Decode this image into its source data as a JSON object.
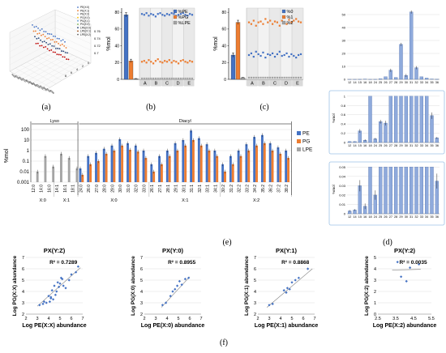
{
  "captions": {
    "a": "(a)",
    "b": "(b)",
    "c": "(c)",
    "d": "(d)",
    "e": "(e)",
    "f": "(f)"
  },
  "colors": {
    "blue": "#4472c4",
    "orange": "#ed7d31",
    "gray": "#a5a5a5",
    "bar_d": "#8faadc",
    "bar_d_edge": "#2f5597",
    "panel_bg": "#f2f2f2",
    "shade": "#d9d9d9",
    "grid": "#d0d0d0"
  },
  "chart_data": [
    {
      "id": "a",
      "type": "scatter",
      "legend": [
        "PE(X:0)",
        "PE(X:1)",
        "PE(X:2)",
        "PG(X:0)",
        "PG(X:1)",
        "PG(X:2)",
        "LPE(X:0)",
        "LPE(X:1)",
        "LPE(X:2)"
      ],
      "legend_colors": [
        "#4472c4",
        "#ed7d31",
        "#a5a5a5",
        "#ffc000",
        "#5b9bd5",
        "#70ad47",
        "#264478",
        "#9e480e",
        "#636363"
      ],
      "z_ticks": [
        "0.76",
        "0.74",
        "0.72",
        "0.7"
      ],
      "y_ticks": [
        "8",
        "6",
        "4",
        "2",
        "0"
      ],
      "series": [
        {
          "color": "#4472c4",
          "values": [
            0.76,
            0.757,
            0.761,
            0.759,
            0.756,
            0.762,
            0.758,
            0.76,
            0.757,
            0.759,
            0.761,
            0.758,
            0.76,
            0.757,
            0.759,
            0.756,
            0.761,
            0.758
          ]
        },
        {
          "color": "#ed7d31",
          "values": [
            0.742,
            0.745,
            0.74,
            0.744,
            0.741,
            0.746,
            0.743,
            0.74,
            0.744,
            0.742,
            0.745,
            0.741,
            0.744,
            0.742,
            0.74,
            0.745,
            0.743,
            0.741
          ]
        },
        {
          "color": "#264478",
          "values": [
            0.726,
            0.723,
            0.727,
            0.724,
            0.722,
            0.726,
            0.725,
            0.723,
            0.727,
            0.724,
            0.726,
            0.722,
            0.725,
            0.727,
            0.723,
            0.725,
            0.724,
            0.726
          ]
        },
        {
          "color": "#c00000",
          "values": [
            0.706,
            0.709,
            0.705,
            0.708,
            0.706,
            0.71,
            0.707,
            0.705,
            0.709,
            0.706,
            0.708,
            0.705,
            0.707,
            0.709,
            0.706,
            0.708,
            0.705,
            0.707
          ]
        }
      ]
    },
    {
      "id": "b",
      "type": "bar+scatter",
      "ylabel": "%mol",
      "yticks": [
        0,
        20,
        40,
        60,
        80
      ],
      "ylim": [
        0,
        85
      ],
      "xcats": [
        "A",
        "B",
        "C",
        "D",
        "E"
      ],
      "legend": [
        "%PE",
        "%PG",
        "%LPE"
      ],
      "colors": [
        "#4472c4",
        "#ed7d31",
        "#a5a5a5"
      ],
      "bars": [
        {
          "value": 77,
          "err": 2.5
        },
        {
          "value": 22,
          "err": 2
        },
        {
          "value": 0.8,
          "err": 0.2
        }
      ],
      "series": [
        {
          "name": "%PE",
          "values": [
            78,
            77,
            79,
            76,
            78,
            77,
            75,
            78,
            79,
            77,
            76,
            78,
            77,
            79,
            78,
            76,
            77,
            78,
            79,
            77,
            76,
            78,
            77
          ]
        },
        {
          "name": "%PG",
          "values": [
            21,
            22,
            20,
            23,
            21,
            19,
            22,
            24,
            21,
            20,
            22,
            21,
            23,
            20,
            22,
            21,
            19,
            22,
            23,
            21,
            20,
            22,
            21
          ]
        },
        {
          "name": "%LPE",
          "values": [
            1,
            1,
            1,
            1,
            1,
            1,
            1,
            1,
            1,
            1,
            1,
            1,
            1,
            1,
            1,
            1,
            1,
            1,
            1,
            1,
            1,
            1,
            1
          ]
        }
      ]
    },
    {
      "id": "c",
      "type": "bar+scatter",
      "ylabel": "%mol",
      "yticks": [
        0,
        20,
        40,
        60,
        80
      ],
      "ylim": [
        0,
        85
      ],
      "xcats": [
        "A",
        "B",
        "C",
        "D",
        "E"
      ],
      "legend": [
        "%0",
        "%1",
        "%2"
      ],
      "colors": [
        "#4472c4",
        "#ed7d31",
        "#a5a5a5"
      ],
      "bars": [
        {
          "value": 29,
          "err": 2.5
        },
        {
          "value": 68,
          "err": 2.5
        },
        {
          "value": 2,
          "err": 0.3
        }
      ],
      "series": [
        {
          "name": "%0",
          "values": [
            29,
            31,
            27,
            33,
            30,
            28,
            32,
            26,
            30,
            29,
            31,
            27,
            30,
            33,
            28,
            29,
            31,
            27,
            30,
            28,
            26,
            29,
            30
          ]
        },
        {
          "name": "%1",
          "values": [
            68,
            66,
            70,
            64,
            68,
            69,
            66,
            72,
            68,
            70,
            66,
            69,
            68,
            64,
            70,
            68,
            66,
            71,
            68,
            70,
            72,
            69,
            68
          ]
        },
        {
          "name": "%2",
          "values": [
            2,
            2,
            2,
            2,
            2,
            2,
            2,
            2,
            2,
            2,
            2,
            2,
            2,
            2,
            2,
            2,
            2,
            2,
            2,
            2,
            2,
            2,
            2
          ]
        }
      ]
    },
    {
      "id": "d1",
      "type": "bar",
      "ylabel": "",
      "yticks": [
        0,
        10,
        20,
        30,
        40,
        50
      ],
      "ylim": [
        0,
        55
      ],
      "categories": [
        "12",
        "14",
        "15",
        "16",
        "18",
        "24",
        "25",
        "26",
        "27",
        "28",
        "29",
        "30",
        "31",
        "32",
        "33",
        "34",
        "35",
        "36"
      ],
      "values": [
        0.02,
        0.02,
        0.05,
        0.2,
        0.02,
        0.03,
        0.5,
        2,
        7,
        1.5,
        27,
        3,
        52,
        9,
        2,
        1,
        0.3,
        0.1
      ]
    },
    {
      "id": "d2",
      "type": "bar",
      "ylabel": "%mol",
      "yticks": [
        0,
        0.2,
        0.4,
        0.6,
        0.8,
        1
      ],
      "ylim": [
        0,
        1.05
      ],
      "categories": [
        "12",
        "14",
        "15",
        "16",
        "18",
        "24",
        "25",
        "26",
        "27",
        "28",
        "29",
        "30",
        "31",
        "32",
        "33",
        "34",
        "35",
        "36"
      ],
      "values": [
        0.02,
        0.02,
        0.25,
        0.05,
        1,
        0.08,
        0.45,
        0.42,
        1,
        1,
        1,
        1,
        1,
        1,
        1,
        1,
        0.58,
        0.1
      ],
      "errors": [
        0.005,
        0.005,
        0.04,
        0.02,
        0,
        0.02,
        0.04,
        0.05,
        0,
        0,
        0,
        0,
        0,
        0,
        0,
        0,
        0.07,
        0.02
      ]
    },
    {
      "id": "d3",
      "type": "bar",
      "ylabel": "%mol",
      "yticks": [
        0,
        0.01,
        0.02,
        0.03,
        0.04,
        0.05
      ],
      "ylim": [
        0,
        0.052
      ],
      "categories": [
        "12",
        "14",
        "15",
        "16",
        "18",
        "24",
        "25",
        "26",
        "27",
        "28",
        "29",
        "30",
        "31",
        "32",
        "33",
        "34",
        "35",
        "36"
      ],
      "values": [
        0.003,
        0.004,
        0.03,
        0.008,
        0.05,
        0.02,
        0.05,
        0.05,
        0.05,
        0.05,
        0.05,
        0.05,
        0.05,
        0.05,
        0.05,
        0.05,
        0.05,
        0.035
      ],
      "errors": [
        0.001,
        0.001,
        0.006,
        0.003,
        0,
        0.005,
        0,
        0,
        0,
        0,
        0,
        0,
        0,
        0,
        0,
        0,
        0,
        0.008
      ]
    },
    {
      "id": "e",
      "type": "bar",
      "log_scale": true,
      "ylabel": "%mol",
      "yticks": [
        "100",
        "10",
        "1",
        "0.1",
        "0.01",
        "0.001"
      ],
      "groups": [
        {
          "label": "Lyso",
          "from": 0,
          "to": 5
        },
        {
          "label": "Diacyl",
          "from": 6,
          "to": 32
        }
      ],
      "subgroups": [
        {
          "label": "X:0",
          "from": 0,
          "to": 2
        },
        {
          "label": "X:1",
          "from": 3,
          "to": 5
        },
        {
          "label": "X:0",
          "from": 6,
          "to": 14
        },
        {
          "label": "X:1",
          "from": 15,
          "to": 23
        },
        {
          "label": "X:2",
          "from": 24,
          "to": 32
        }
      ],
      "legend": [
        "PE",
        "PG",
        "LPE"
      ],
      "colors": [
        "#4472c4",
        "#ed7d31",
        "#a5a5a5"
      ],
      "categories": [
        "12:0",
        "14:0",
        "16:0",
        "14:1",
        "16:1",
        "18:1",
        "24:0",
        "26:0",
        "27:0",
        "28:0",
        "29:0",
        "30:0",
        "31:0",
        "32:0",
        "33:0",
        "26:1",
        "27:1",
        "28:1",
        "29:1",
        "30:1",
        "31:1",
        "32:1",
        "33:1",
        "34:1",
        "30:2",
        "31:2",
        "32:2",
        "33:2",
        "34:2",
        "35:2",
        "36:2",
        "37:2",
        "38:2"
      ],
      "series": [
        {
          "name": "PE",
          "values": [
            null,
            null,
            null,
            null,
            null,
            null,
            0.02,
            0.3,
            0.6,
            1.5,
            3,
            12,
            5,
            3,
            1,
            0.05,
            0.3,
            1,
            5,
            10,
            80,
            15,
            4,
            1,
            0.05,
            0.3,
            1,
            4,
            20,
            30,
            5,
            2,
            1
          ]
        },
        {
          "name": "PG",
          "values": [
            null,
            null,
            null,
            null,
            null,
            null,
            0.005,
            0.05,
            0.1,
            0.5,
            1,
            3,
            1.2,
            0.8,
            0.2,
            0.01,
            0.05,
            0.3,
            1,
            3,
            10,
            3,
            1,
            0.3,
            0.01,
            0.05,
            0.3,
            1,
            3,
            5,
            1,
            0.5,
            0.2
          ]
        },
        {
          "name": "LPE",
          "values": [
            0.01,
            0.3,
            0.03,
            0.5,
            0.2,
            0.02,
            null,
            null,
            null,
            null,
            null,
            null,
            null,
            null,
            null,
            null,
            null,
            null,
            null,
            null,
            null,
            null,
            null,
            null,
            null,
            null,
            null,
            null,
            null,
            null,
            null,
            null,
            null
          ]
        }
      ]
    },
    {
      "id": "f1",
      "type": "scatter",
      "title": "PX(Y:Z)",
      "r2": "R² = 0.7289",
      "xlabel": "Log PE(X:X) abundance",
      "ylabel": "Log PG(X:X) abundance",
      "xticks": [
        2,
        3,
        4,
        5,
        6,
        7
      ],
      "yticks": [
        2,
        3,
        4,
        5,
        6,
        7
      ],
      "xlim": [
        2,
        7
      ],
      "ylim": [
        2,
        7
      ],
      "trend": [
        [
          3,
          2.7
        ],
        [
          6.8,
          6.1
        ]
      ],
      "x": [
        3.2,
        3.5,
        3.8,
        4.0,
        4.1,
        4.2,
        4.3,
        4.4,
        4.5,
        4.6,
        4.7,
        4.8,
        4.9,
        5.0,
        5.1,
        5.2,
        5.3,
        5.5,
        5.8,
        6.0,
        6.4,
        6.6,
        4.2,
        3.6
      ],
      "y": [
        2.8,
        2.9,
        3.0,
        3.6,
        3.1,
        3.5,
        4.1,
        3.3,
        4.5,
        3.7,
        4.0,
        4.8,
        4.4,
        4.7,
        5.2,
        5.1,
        4.5,
        4.3,
        5.0,
        5.5,
        5.7,
        6.2,
        3.4,
        3.1
      ]
    },
    {
      "id": "f2",
      "type": "scatter",
      "title": "PX(Y:0)",
      "r2": "R² = 0.8955",
      "xlabel": "Log PE(X:0) abundance",
      "ylabel": "Log PG(X:0) abundance",
      "xticks": [
        2,
        3,
        4,
        5,
        6,
        7
      ],
      "yticks": [
        2,
        3,
        4,
        5,
        6,
        7
      ],
      "xlim": [
        2,
        7
      ],
      "ylim": [
        2,
        7
      ],
      "trend": [
        [
          3.5,
          2.6
        ],
        [
          6.0,
          5.3
        ]
      ],
      "x": [
        3.6,
        3.9,
        4.3,
        4.5,
        4.7,
        4.9,
        5.1,
        5.3,
        5.6,
        5.9
      ],
      "y": [
        2.8,
        3.0,
        3.6,
        4.0,
        4.2,
        4.5,
        4.9,
        4.6,
        5.1,
        5.2
      ]
    },
    {
      "id": "f3",
      "type": "scatter",
      "title": "PX(Y:1)",
      "r2": "R² = 0.8868",
      "xlabel": "Log PE(X:1) abundance",
      "ylabel": "Log PG(X:1) abundance",
      "xticks": [
        2,
        3,
        4,
        5,
        6,
        7
      ],
      "yticks": [
        2,
        3,
        4,
        5,
        6,
        7
      ],
      "xlim": [
        2,
        7
      ],
      "ylim": [
        2,
        7
      ],
      "trend": [
        [
          2.8,
          2.6
        ],
        [
          6.8,
          6.0
        ]
      ],
      "x": [
        3.0,
        3.3,
        4.3,
        4.5,
        4.6,
        4.8,
        5.0,
        5.3,
        5.6,
        6.4
      ],
      "y": [
        2.8,
        2.9,
        4.1,
        3.9,
        4.3,
        4.2,
        4.8,
        5.0,
        5.2,
        6.0
      ]
    },
    {
      "id": "f4",
      "type": "scatter",
      "title": "PX(Y:2)",
      "r2": "R² = 0.0035",
      "xlabel": "Log PE(X:2) abundance",
      "ylabel": "Log PG(X:2) abundance",
      "xticks": [
        "2.5",
        "3.5",
        "4.5",
        "5.5"
      ],
      "yticks": [
        0,
        1,
        2,
        3,
        4,
        5
      ],
      "xlim": [
        2.5,
        5.5
      ],
      "ylim": [
        0,
        5
      ],
      "trend": [
        [
          3.3,
          3.9
        ],
        [
          4.9,
          3.95
        ]
      ],
      "x": [
        3.6,
        3.8,
        4.1,
        4.3,
        4.8
      ],
      "y": [
        4.6,
        3.3,
        2.9,
        4.1,
        4.4
      ]
    }
  ]
}
